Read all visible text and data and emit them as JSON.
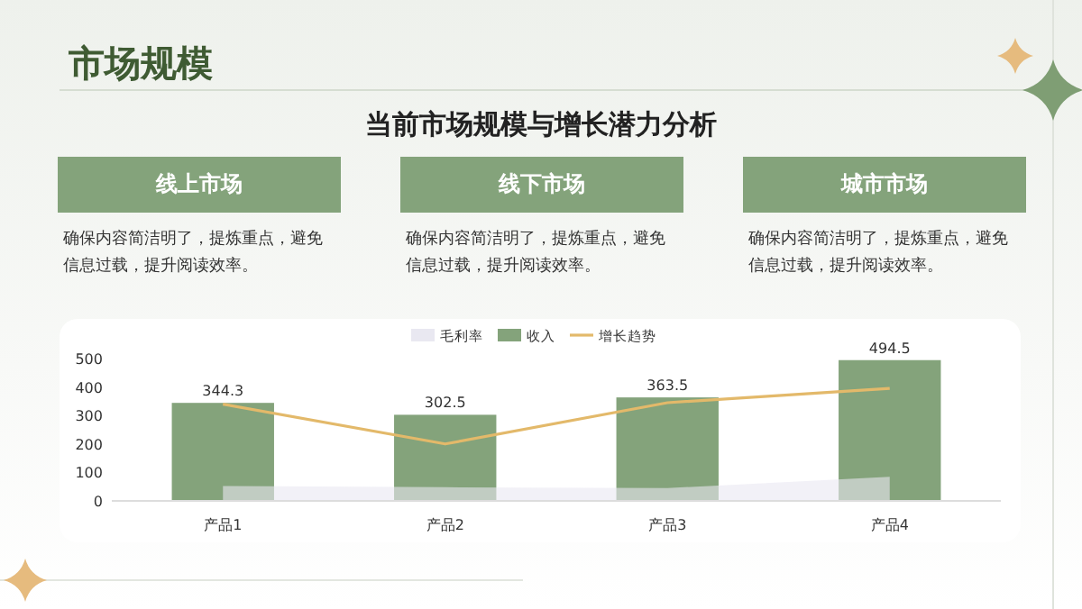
{
  "chart_data": {
    "type": "bar",
    "title": "市场规模",
    "subtitle": "当前市场规模与增长潜力分析",
    "annotations": [
      "线上市场",
      "确保内容简洁明了，提炼重点，避免信息过载，提升阅读效率。",
      "线下市场",
      "确保内容简洁明了，提炼重点，避免信息过载，提升阅读效率。",
      "城市市场",
      "确保内容简洁明了，提炼重点，避免信息过载，提升阅读效率。"
    ],
    "categories": [
      "产品1",
      "产品2",
      "产品3",
      "产品4"
    ],
    "series": [
      {
        "name": "毛利率",
        "type": "area",
        "color": "#e9e8f1",
        "values": [
          52,
          48,
          45,
          85
        ]
      },
      {
        "name": "收入",
        "color": "#84a37b",
        "values": [
          344.3,
          302.5,
          363.5,
          494.5
        ],
        "value_labels": [
          "344.3",
          "302.5",
          "363.5",
          "494.5"
        ]
      },
      {
        "name": "增长趋势",
        "type": "line",
        "color": "#e3b96a",
        "values": [
          340,
          200,
          345,
          395
        ]
      }
    ],
    "ylim": [
      0,
      500
    ],
    "yticks": [
      0,
      100,
      200,
      300,
      400,
      500
    ],
    "legend": "top",
    "grid": false
  }
}
